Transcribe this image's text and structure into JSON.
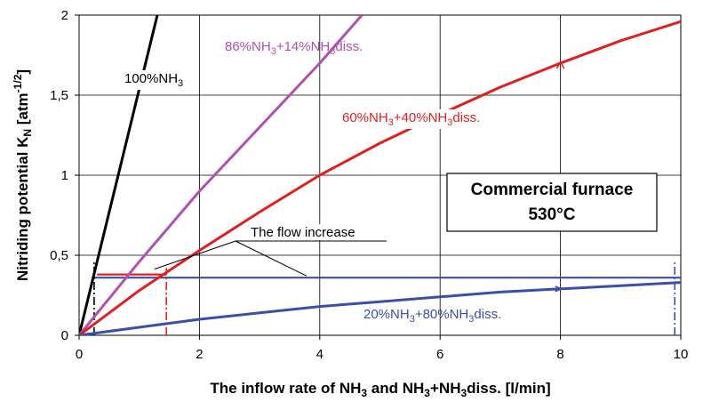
{
  "chart_data": {
    "type": "line",
    "xlabel": {
      "main": "The inflow rate of NH",
      "sub1": "3",
      "mid": " and NH",
      "sub2": "3",
      "mid2": "+NH",
      "sub3": "3",
      "tail": "diss. [l/min]"
    },
    "ylabel": {
      "main": "Nitriding potential K",
      "sub": "N",
      "mid": " [atm",
      "sup": "-1/2",
      "tail": "]"
    },
    "xlim": [
      0,
      10
    ],
    "ylim": [
      0,
      2
    ],
    "x_ticks": [
      0,
      2,
      4,
      6,
      8,
      10
    ],
    "x_tick_labels": [
      "0",
      "2",
      "4",
      "6",
      "8",
      "10"
    ],
    "y_ticks": [
      0,
      0.5,
      1,
      1.5,
      2
    ],
    "y_tick_labels": [
      "0",
      "0,5",
      "1",
      "1,5",
      "2"
    ],
    "grid": true,
    "series": [
      {
        "key": "nh3_100",
        "label_parts": [
          [
            "100%NH",
            "n"
          ],
          [
            "3",
            "sub"
          ]
        ],
        "color": "#000000",
        "x": [
          0,
          1.3
        ],
        "y": [
          0,
          2.0
        ]
      },
      {
        "key": "nh3_86",
        "label_parts": [
          [
            "86%NH",
            "n"
          ],
          [
            "3",
            "sub"
          ],
          [
            "+14%NH",
            "n"
          ],
          [
            "3",
            "sub"
          ],
          [
            "diss.",
            "n"
          ]
        ],
        "color": "#b050b0",
        "x": [
          0,
          1,
          2,
          3,
          4,
          4.7
        ],
        "y": [
          0,
          0.46,
          0.9,
          1.3,
          1.7,
          2.0
        ]
      },
      {
        "key": "nh3_60",
        "label_parts": [
          [
            "60%NH",
            "n"
          ],
          [
            "3",
            "sub"
          ],
          [
            "+40%NH",
            "n"
          ],
          [
            "3",
            "sub"
          ],
          [
            "diss.",
            "n"
          ]
        ],
        "color": "#e02020",
        "x": [
          0,
          1,
          2,
          3,
          4,
          5,
          6,
          7,
          8,
          9,
          10
        ],
        "y": [
          0,
          0.28,
          0.53,
          0.77,
          1.0,
          1.2,
          1.38,
          1.55,
          1.7,
          1.84,
          1.96
        ]
      },
      {
        "key": "nh3_20",
        "label_parts": [
          [
            "20%NH",
            "n"
          ],
          [
            "3",
            "sub"
          ],
          [
            "+80%NH",
            "n"
          ],
          [
            "3",
            "sub"
          ],
          [
            "diss.",
            "n"
          ]
        ],
        "color": "#3a50a8",
        "x": [
          0,
          1,
          2,
          3,
          4,
          5,
          6,
          7,
          8,
          9,
          10
        ],
        "y": [
          0,
          0.05,
          0.1,
          0.14,
          0.18,
          0.21,
          0.24,
          0.27,
          0.29,
          0.31,
          0.33
        ]
      }
    ],
    "reference_lines": [
      {
        "key": "blue_h",
        "color": "#3a50a8",
        "x": [
          0.25,
          10
        ],
        "y": [
          0.36,
          0.36
        ],
        "style": "solid"
      },
      {
        "key": "red_h",
        "color": "#e02020",
        "x": [
          0.3,
          1.45
        ],
        "y": [
          0.38,
          0.38
        ],
        "style": "solid"
      },
      {
        "key": "black_v",
        "color": "#000000",
        "x": [
          0.25,
          0.25
        ],
        "y": [
          0,
          0.47
        ],
        "style": "dashdot"
      },
      {
        "key": "red_v",
        "color": "#e02020",
        "x": [
          1.45,
          1.45
        ],
        "y": [
          0,
          0.42
        ],
        "style": "dashdot"
      },
      {
        "key": "blue_v",
        "color": "#3a50a8",
        "x": [
          9.9,
          9.9
        ],
        "y": [
          0,
          0.47
        ],
        "style": "dashdot"
      }
    ],
    "annotation": {
      "text": "The flow increase",
      "pointer_targets": [
        [
          1.4,
          0.38
        ],
        [
          4.0,
          0.36
        ]
      ]
    },
    "box": {
      "line1": "Commercial furnace",
      "line2": "530°C"
    }
  }
}
